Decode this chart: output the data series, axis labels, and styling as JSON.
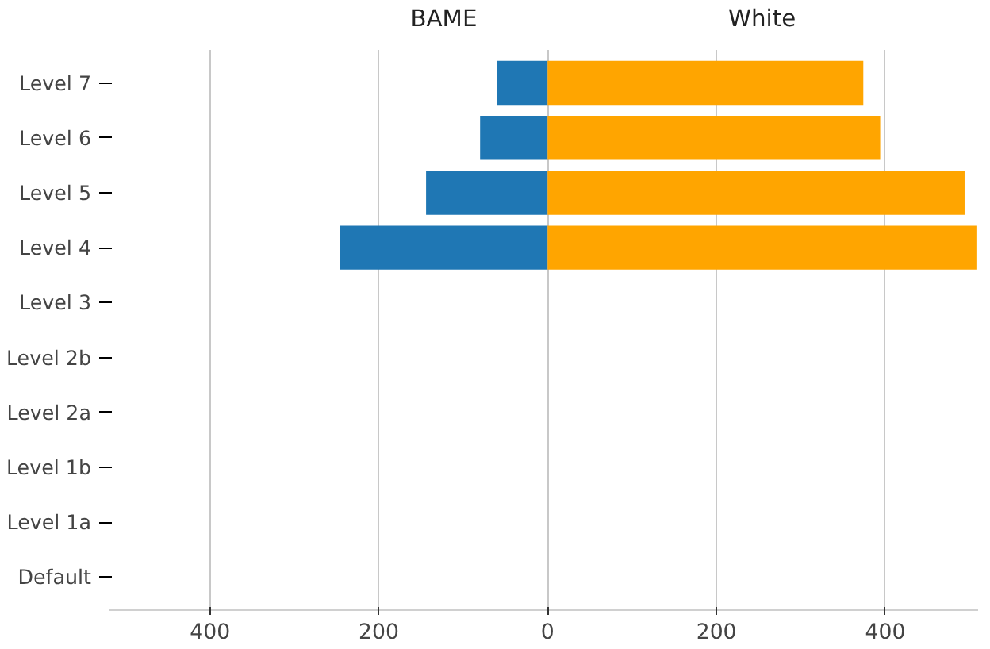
{
  "chart_data": {
    "type": "bar",
    "orientation": "horizontal",
    "categories": [
      "Level 7",
      "Level 6",
      "Level 5",
      "Level 4",
      "Level 3",
      "Level 2b",
      "Level 2a",
      "Level 1b",
      "Level 1a",
      "Default"
    ],
    "series": [
      {
        "name": "BAME",
        "color": "#1f77b4",
        "values": [
          -60,
          -80,
          -144,
          -246,
          0,
          0,
          0,
          0,
          0,
          0
        ]
      },
      {
        "name": "White",
        "color": "#ffa500",
        "values": [
          374,
          394,
          494,
          508,
          0,
          0,
          0,
          0,
          0,
          0
        ]
      }
    ],
    "xlim": [
      -520,
      510
    ],
    "xticks": [
      {
        "value": -400,
        "label": "400"
      },
      {
        "value": -200,
        "label": "200"
      },
      0,
      200,
      400
    ],
    "grid": "x",
    "legend": false
  }
}
